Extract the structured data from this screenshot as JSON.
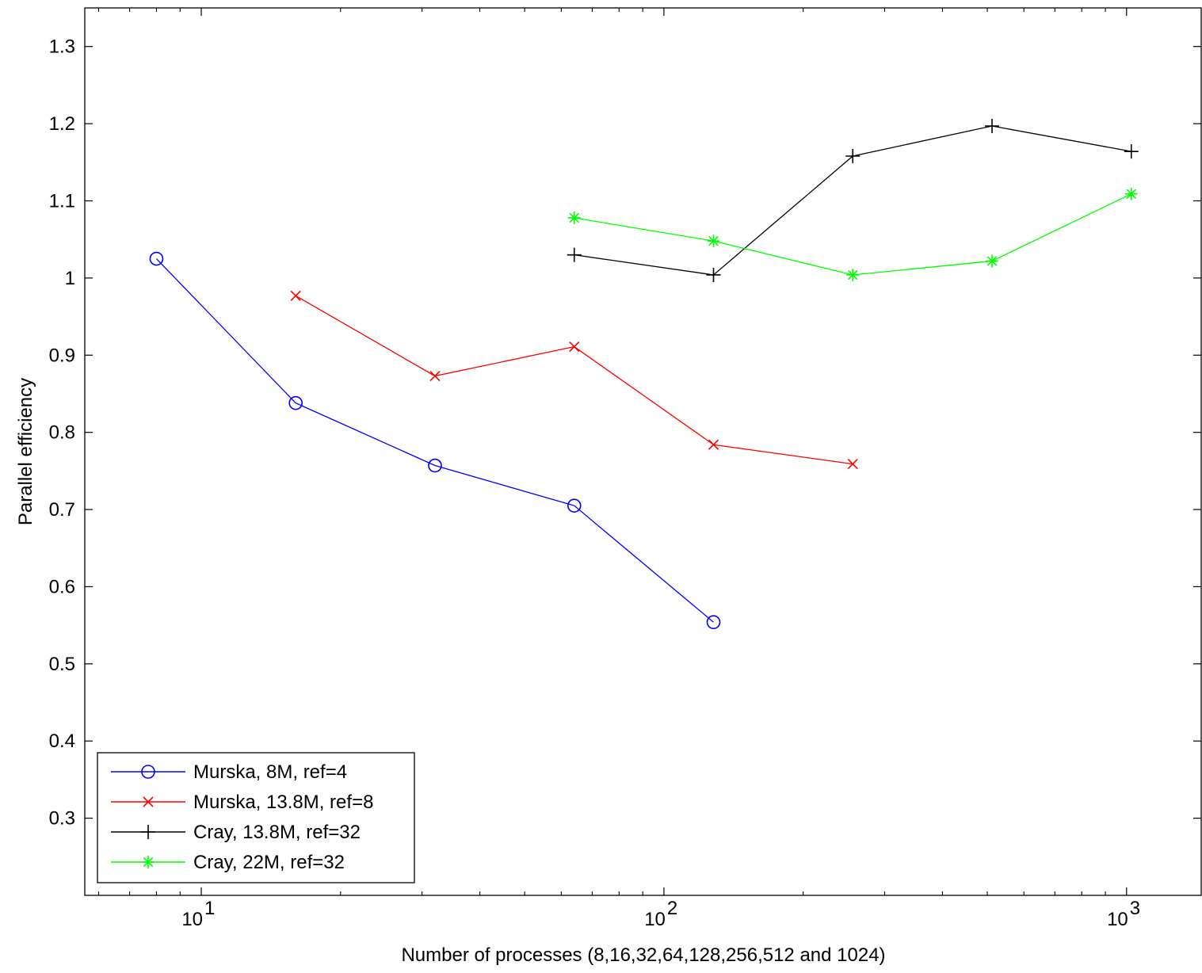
{
  "chart_data": {
    "type": "line",
    "title": "",
    "xlabel": "Number of processes  (8,16,32,64,128,256,512 and 1024)",
    "ylabel": "Parallel efficiency",
    "xscale": "log",
    "xlim": [
      5.6,
      1450
    ],
    "ylim": [
      0.2,
      1.35
    ],
    "xticks": [
      {
        "value": 10,
        "base": "10",
        "exp": "1"
      },
      {
        "value": 100,
        "base": "10",
        "exp": "2"
      },
      {
        "value": 1000,
        "base": "10",
        "exp": "3"
      }
    ],
    "yticks": [
      {
        "value": 0.3,
        "label": "0.3"
      },
      {
        "value": 0.4,
        "label": "0.4"
      },
      {
        "value": 0.5,
        "label": "0.5"
      },
      {
        "value": 0.6,
        "label": "0.6"
      },
      {
        "value": 0.7,
        "label": "0.7"
      },
      {
        "value": 0.8,
        "label": "0.8"
      },
      {
        "value": 0.9,
        "label": "0.9"
      },
      {
        "value": 1.0,
        "label": "1"
      },
      {
        "value": 1.1,
        "label": "1.1"
      },
      {
        "value": 1.2,
        "label": "1.2"
      },
      {
        "value": 1.3,
        "label": "1.3"
      }
    ],
    "grid": false,
    "legend_position": "bottom-left",
    "series": [
      {
        "name": "Murska, 8M, ref=4",
        "color": "#0000ff",
        "marker": "circle",
        "x": [
          8,
          16,
          32,
          64,
          128
        ],
        "y": [
          1.025,
          0.838,
          0.757,
          0.705,
          0.554
        ]
      },
      {
        "name": "Murska, 13.8M, ref=8",
        "color": "#ff0000",
        "marker": "x",
        "x": [
          16,
          32,
          64,
          128,
          256
        ],
        "y": [
          0.977,
          0.873,
          0.911,
          0.784,
          0.759
        ]
      },
      {
        "name": "Cray, 13.8M, ref=32",
        "color": "#000000",
        "marker": "plus",
        "x": [
          64,
          128,
          256,
          512,
          1024
        ],
        "y": [
          1.03,
          1.004,
          1.158,
          1.197,
          1.164
        ]
      },
      {
        "name": "Cray, 22M, ref=32",
        "color": "#00ff00",
        "marker": "star",
        "x": [
          64,
          128,
          256,
          512,
          1024
        ],
        "y": [
          1.078,
          1.048,
          1.004,
          1.022,
          1.109
        ]
      }
    ]
  }
}
